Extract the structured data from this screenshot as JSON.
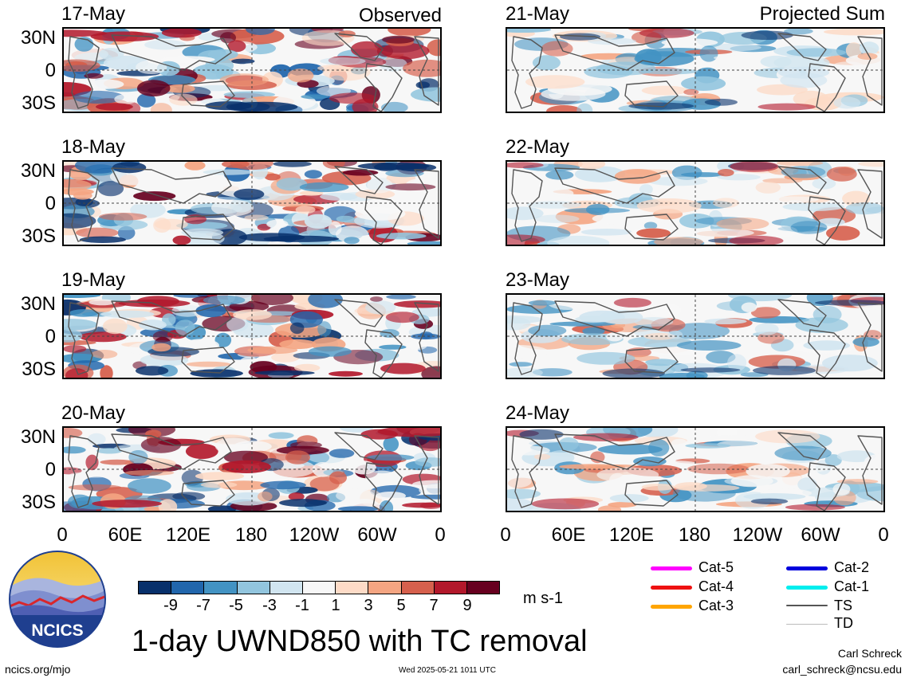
{
  "observed_label": "Observed",
  "projected_label": "Projected Sum",
  "observed_dates": [
    "17-May",
    "18-May",
    "19-May",
    "20-May"
  ],
  "projected_dates": [
    "21-May",
    "22-May",
    "23-May",
    "24-May"
  ],
  "lat_labels": [
    "30N",
    "0",
    "30S"
  ],
  "lon_labels": [
    "0",
    "60E",
    "120E",
    "180",
    "120W",
    "60W",
    "0"
  ],
  "colorbar": {
    "ticks": [
      "-9",
      "-7",
      "-5",
      "-3",
      "-1",
      "1",
      "3",
      "5",
      "7",
      "9"
    ],
    "colors": [
      "#08306b",
      "#2166ac",
      "#4393c3",
      "#92c5de",
      "#d1e5f0",
      "#f7f7f7",
      "#fddbc7",
      "#f4a582",
      "#d6604d",
      "#b2182b",
      "#67001f"
    ],
    "units": "m s-1"
  },
  "title": "1-day UWND850 with TC removal",
  "legend": [
    {
      "label": "Cat-5",
      "color": "#ff00ff"
    },
    {
      "label": "Cat-4",
      "color": "#ee1111"
    },
    {
      "label": "Cat-3",
      "color": "#ffa500"
    },
    {
      "label": "Cat-2",
      "color": "#0000dd"
    },
    {
      "label": "Cat-1",
      "color": "#00eeee"
    },
    {
      "label": "TS",
      "color": "#555555"
    },
    {
      "label": "TD",
      "color": "#bbbbbb"
    }
  ],
  "logo_text": "NCICS",
  "footer": {
    "url": "ncics.org/mjo",
    "timestamp": "Wed 2025-05-21 1011 UTC",
    "author": "Carl Schreck",
    "email": "carl_schreck@ncsu.edu"
  }
}
